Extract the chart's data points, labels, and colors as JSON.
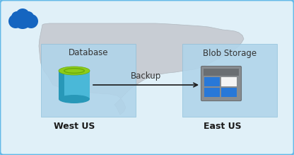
{
  "bg_color": "#e8f4fb",
  "outer_border_color": "#64b9e8",
  "inner_bg_color": "#e0f0f8",
  "map_color": "#c8cdd4",
  "db_box_color": "#b0d4ea",
  "db_box_border": "#88bcd8",
  "blob_box_color": "#b0d4ea",
  "blob_box_border": "#88bcd8",
  "cloud_blue": "#1565c0",
  "cloud_mid": "#1976d2",
  "db_cyl_body": "#4ab8d8",
  "db_cyl_side": "#2898b8",
  "db_cyl_top_green": "#8ecc1a",
  "db_cyl_top_dark": "#6aaa0a",
  "blob_frame_outer": "#888c90",
  "blob_frame_inner": "#6a6e72",
  "blob_blue": "#2878d8",
  "blob_white": "#f4f4f4",
  "arrow_color": "#1a1a1a",
  "text_label_color": "#333333",
  "text_bold_color": "#1a1a1a",
  "title_database": "Database",
  "title_blob": "Blob Storage",
  "label_west": "West US",
  "label_east": "East US",
  "label_backup": "Backup",
  "figsize": [
    4.16,
    2.19
  ],
  "dpi": 100
}
